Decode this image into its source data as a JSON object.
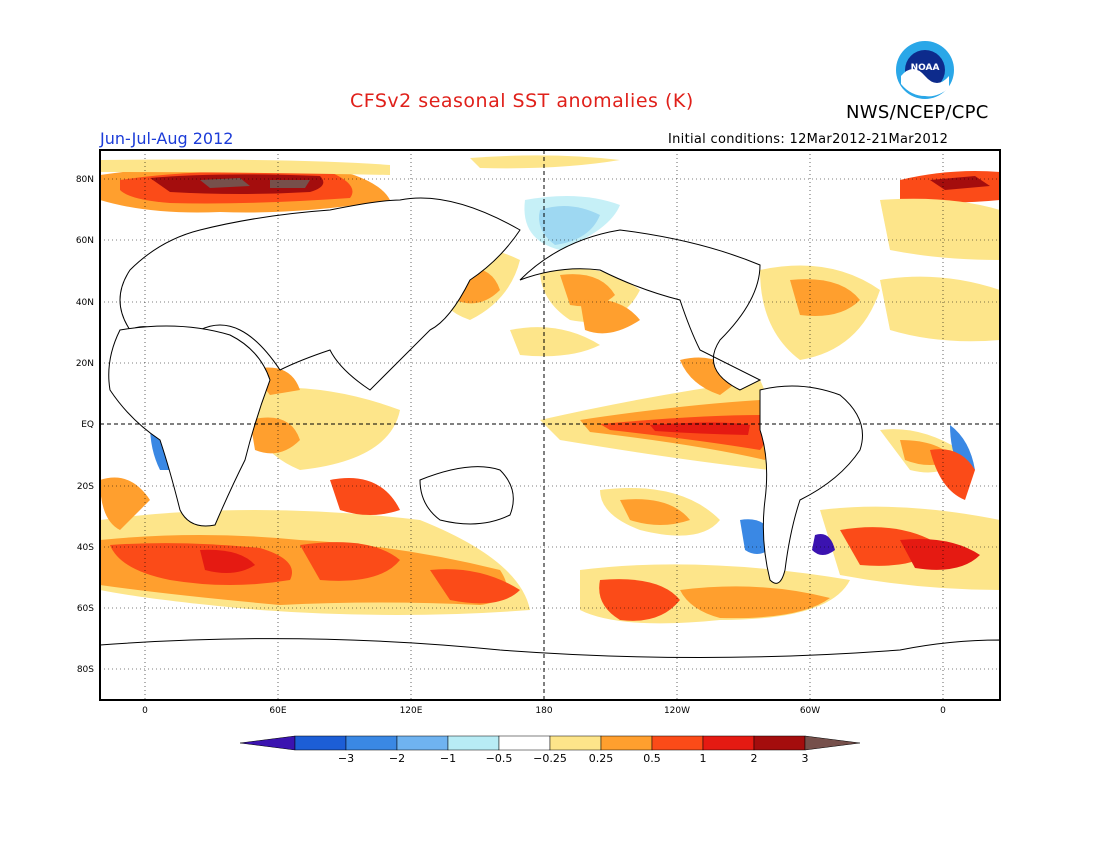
{
  "title": "CFSv2 seasonal SST anomalies (K)",
  "agency": "NWS/NCEP/CPC",
  "logo_text": "NOAA",
  "season": "Jun-Jul-Aug 2012",
  "initial_conditions": "Initial conditions: 12Mar2012-21Mar2012",
  "map": {
    "lat_labels": [
      "80N",
      "60N",
      "40N",
      "20N",
      "EQ",
      "20S",
      "40S",
      "60S",
      "80S"
    ],
    "lon_labels": [
      "0",
      "60E",
      "120E",
      "180",
      "120W",
      "60W",
      "0"
    ]
  },
  "colorbar": {
    "labels": [
      "−3",
      "−2",
      "−1",
      "−0.5",
      "−0.25",
      "0.25",
      "0.5",
      "1",
      "2",
      "3"
    ],
    "colors": [
      "#3b13b0",
      "#1c5ed6",
      "#3a88e4",
      "#6fb3f0",
      "#b8ecf5",
      "#ffffff",
      "#fde58a",
      "#ff9f2e",
      "#fb4b18",
      "#e51a12",
      "#a40d0d",
      "#76504b"
    ]
  },
  "colors": {
    "title": "#e0201a",
    "season": "#1c3cd8",
    "land": "#ffffff"
  }
}
